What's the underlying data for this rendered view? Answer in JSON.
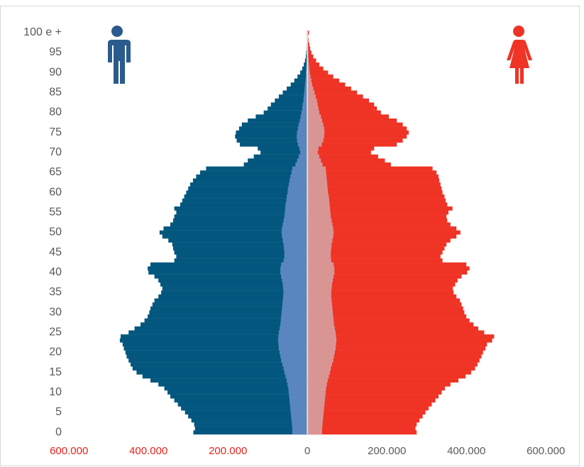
{
  "chart_data": {
    "type": "pyramid",
    "categories": [
      "0",
      null,
      null,
      null,
      null,
      "5",
      null,
      null,
      null,
      null,
      "10",
      null,
      null,
      null,
      null,
      "15",
      null,
      null,
      null,
      null,
      "20",
      null,
      null,
      null,
      null,
      "25",
      null,
      null,
      null,
      null,
      "30",
      null,
      null,
      null,
      null,
      "35",
      null,
      null,
      null,
      null,
      "40",
      null,
      null,
      null,
      null,
      "45",
      null,
      null,
      null,
      null,
      "50",
      null,
      null,
      null,
      null,
      "55",
      null,
      null,
      null,
      null,
      "60",
      null,
      null,
      null,
      null,
      "65",
      null,
      null,
      null,
      null,
      "70",
      null,
      null,
      null,
      null,
      "75",
      null,
      null,
      null,
      null,
      "80",
      null,
      null,
      null,
      null,
      "85",
      null,
      null,
      null,
      null,
      "90",
      null,
      null,
      null,
      null,
      "95",
      null,
      null,
      null,
      null,
      "100 e +"
    ],
    "series": [
      {
        "color": "#03577f",
        "values": [
          -287000,
          -283000,
          -285000,
          -292000,
          -300000,
          -308000,
          -318000,
          -326000,
          -335000,
          -345000,
          -352000,
          -360000,
          -375000,
          -395000,
          -415000,
          -430000,
          -440000,
          -445000,
          -450000,
          -455000,
          -458000,
          -462000,
          -465000,
          -472000,
          -470000,
          -450000,
          -435000,
          -420000,
          -410000,
          -402000,
          -398000,
          -395000,
          -390000,
          -385000,
          -375000,
          -368000,
          -365000,
          -370000,
          -375000,
          -385000,
          -400000,
          -402000,
          -395000,
          -335000,
          -330000,
          -335000,
          -338000,
          -340000,
          -350000,
          -365000,
          -372000,
          -362000,
          -345000,
          -338000,
          -335000,
          -330000,
          -335000,
          -320000,
          -315000,
          -310000,
          -305000,
          -300000,
          -295000,
          -288000,
          -280000,
          -270000,
          -255000,
          -160000,
          -150000,
          -135000,
          -118000,
          -125000,
          -170000,
          -178000,
          -182000,
          -180000,
          -172000,
          -165000,
          -150000,
          -130000,
          -110000,
          -100000,
          -92000,
          -82000,
          -72000,
          -62000,
          -52000,
          -42000,
          -33000,
          -25000,
          -18000,
          -13000,
          -9000,
          -6000,
          -4000,
          -3000,
          -2000,
          -1500,
          -1000,
          -600,
          -1500
        ]
      },
      {
        "color": "#5a86c0",
        "values": [
          -38000,
          -38000,
          -39000,
          -40000,
          -41000,
          -42000,
          -43000,
          -44000,
          -45000,
          -46000,
          -47000,
          -48000,
          -50000,
          -52000,
          -55000,
          -58000,
          -60000,
          -63000,
          -66000,
          -68000,
          -70000,
          -72000,
          -73000,
          -74000,
          -73000,
          -72000,
          -70000,
          -68000,
          -67000,
          -66000,
          -65000,
          -64000,
          -63000,
          -62000,
          -61000,
          -60000,
          -61000,
          -62000,
          -64000,
          -66000,
          -68000,
          -68000,
          -66000,
          -60000,
          -58000,
          -58000,
          -59000,
          -60000,
          -62000,
          -64000,
          -65000,
          -64000,
          -62000,
          -60000,
          -58000,
          -57000,
          -56000,
          -55000,
          -53000,
          -52000,
          -50000,
          -49000,
          -47000,
          -45000,
          -43000,
          -40000,
          -38000,
          -30000,
          -26000,
          -22000,
          -18000,
          -20000,
          -24000,
          -26000,
          -27000,
          -26000,
          -24000,
          -22000,
          -19000,
          -17000,
          -15000,
          -13000,
          -12000,
          -10000,
          -9000,
          -8000,
          -7000,
          -6000,
          -5000,
          -4000,
          -4000,
          -3000,
          -2000,
          -2000,
          -1000,
          -1000,
          -1000,
          -500,
          -500,
          -300,
          -500
        ]
      },
      {
        "color": "#ef3325",
        "values": [
          275000,
          272000,
          275000,
          282000,
          290000,
          297000,
          305000,
          313000,
          322000,
          330000,
          338000,
          346000,
          360000,
          380000,
          398000,
          412000,
          422000,
          428000,
          433000,
          438000,
          442000,
          448000,
          452000,
          465000,
          470000,
          445000,
          430000,
          418000,
          408000,
          400000,
          395000,
          392000,
          388000,
          384000,
          375000,
          368000,
          366000,
          372000,
          378000,
          388000,
          402000,
          408000,
          400000,
          340000,
          335000,
          340000,
          345000,
          350000,
          360000,
          375000,
          385000,
          375000,
          360000,
          352000,
          350000,
          355000,
          365000,
          352000,
          348000,
          345000,
          340000,
          338000,
          335000,
          332000,
          330000,
          325000,
          315000,
          210000,
          195000,
          178000,
          160000,
          168000,
          225000,
          240000,
          250000,
          255000,
          250000,
          240000,
          225000,
          205000,
          185000,
          175000,
          168000,
          155000,
          140000,
          125000,
          110000,
          95000,
          80000,
          65000,
          52000,
          40000,
          30000,
          22000,
          15000,
          10000,
          7000,
          5000,
          3000,
          2000,
          4000
        ]
      },
      {
        "color": "#d99594",
        "values": [
          37000,
          37000,
          38000,
          39000,
          40000,
          41000,
          42000,
          43000,
          44000,
          45000,
          46000,
          47000,
          49000,
          51000,
          54000,
          57000,
          59000,
          62000,
          65000,
          67000,
          69000,
          71000,
          72000,
          73000,
          72000,
          71000,
          69000,
          67000,
          66000,
          65000,
          64000,
          63000,
          62000,
          61000,
          60000,
          60000,
          61000,
          62000,
          64000,
          66000,
          68000,
          68000,
          66000,
          60000,
          59000,
          59000,
          60000,
          61000,
          63000,
          65000,
          66000,
          65000,
          63000,
          61000,
          59000,
          58000,
          57000,
          56000,
          55000,
          54000,
          52000,
          51000,
          50000,
          49000,
          48000,
          47000,
          46000,
          38000,
          34000,
          30000,
          26000,
          28000,
          36000,
          40000,
          42000,
          43000,
          42000,
          40000,
          37000,
          34000,
          30000,
          28000,
          26000,
          24000,
          21000,
          18000,
          15000,
          12000,
          10000,
          8000,
          6000,
          5000,
          4000,
          3000,
          2000,
          2000,
          1000,
          1000,
          600,
          400,
          800
        ]
      }
    ],
    "xlim": [
      -720000,
      680000
    ],
    "xticks": [
      {
        "value": -600000,
        "label": "600.000"
      },
      {
        "value": -400000,
        "label": "400.000"
      },
      {
        "value": -200000,
        "label": "200.000"
      },
      0,
      {
        "value": 200000,
        "label": "200.000"
      },
      {
        "value": 400000,
        "label": "400.000"
      },
      {
        "value": 600000,
        "label": "600.000"
      }
    ],
    "tick_color": "#595959",
    "negative_tick_color": "#e8221c"
  }
}
